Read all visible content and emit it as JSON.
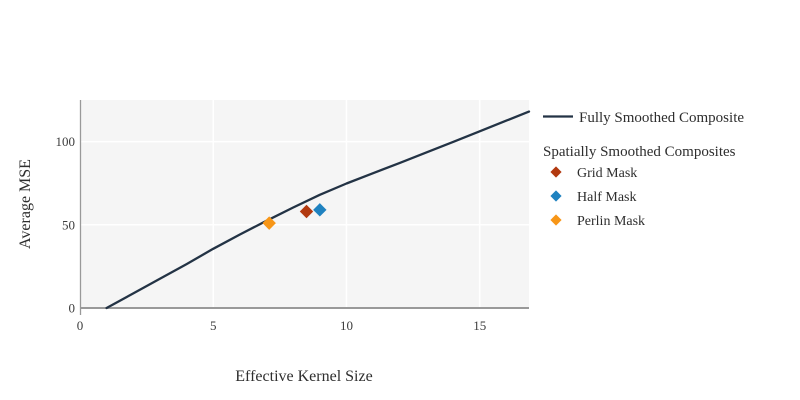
{
  "figure": {
    "panel_background": "#f5f5f5",
    "grid_color": "#ffffff",
    "axis_line_color": "#999999",
    "zero_line_color": "#999999",
    "tick_label_color": "#3d3d3d",
    "text_color": "#2e2e2e"
  },
  "chart_data": {
    "type": "line",
    "title": "",
    "xlabel": "Effective Kernel Size",
    "ylabel": "Average MSE",
    "xlim": [
      0,
      16.85
    ],
    "ylim": [
      0,
      125
    ],
    "x_ticks": [
      0,
      5,
      10,
      15
    ],
    "y_ticks": [
      0,
      50,
      100
    ],
    "grid": true,
    "legend_position": "right",
    "line_series": {
      "name": "Fully Smoothed Composite",
      "color": "#233345",
      "points": [
        [
          1,
          0
        ],
        [
          2,
          8.8
        ],
        [
          3,
          17.6
        ],
        [
          4,
          26.4
        ],
        [
          5,
          35.6
        ],
        [
          6,
          44.2
        ],
        [
          7,
          52.4
        ],
        [
          8,
          60.4
        ],
        [
          9,
          68
        ],
        [
          10,
          74.8
        ],
        [
          11,
          81.0
        ],
        [
          12,
          87.2
        ],
        [
          13,
          93.5
        ],
        [
          14,
          99.8
        ],
        [
          15,
          106.2
        ],
        [
          16,
          112.6
        ],
        [
          16.85,
          118
        ]
      ]
    },
    "scatter_group_title": "Spatially Smoothed Composites",
    "scatter_series": [
      {
        "name": "Grid Mask",
        "color": "#b2390f",
        "x": 8.5,
        "y": 58
      },
      {
        "name": "Half Mask",
        "color": "#1f82c0",
        "x": 9.0,
        "y": 59
      },
      {
        "name": "Perlin Mask",
        "color": "#f79617",
        "x": 7.1,
        "y": 51
      }
    ]
  }
}
